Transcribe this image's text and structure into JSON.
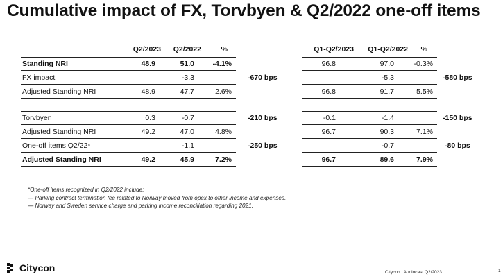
{
  "title": "Cumulative impact of FX, Torvbyen & Q2/2022 one-off items",
  "left_table": {
    "headers": [
      "Q2/2023",
      "Q2/2022",
      "%"
    ],
    "rows": [
      {
        "label": "Standing NRI",
        "a": "48.9",
        "b": "51.0",
        "pct": "-4.1%"
      },
      {
        "label": "FX impact",
        "a": "",
        "b": "-3.3",
        "pct": ""
      },
      {
        "label": "Adjusted Standing NRI",
        "a": "48.9",
        "b": "47.7",
        "pct": "2.6%"
      },
      {
        "label": "Torvbyen",
        "a": "0.3",
        "b": "-0.7",
        "pct": ""
      },
      {
        "label": "Adjusted Standing NRI",
        "a": "49.2",
        "b": "47.0",
        "pct": "4.8%"
      },
      {
        "label": "One-off items Q2/22*",
        "a": "",
        "b": "-1.1",
        "pct": ""
      },
      {
        "label": "Adjusted Standing NRI",
        "a": "49.2",
        "b": "45.9",
        "pct": "7.2%"
      }
    ],
    "bps": {
      "fx": "-670 bps",
      "torvbyen": "-210 bps",
      "oneoff": "-250 bps"
    }
  },
  "right_table": {
    "headers": [
      "Q1-Q2/2023",
      "Q1-Q2/2022",
      "%"
    ],
    "rows": [
      {
        "a": "96.8",
        "b": "97.0",
        "pct": "-0.3%"
      },
      {
        "a": "",
        "b": "-5.3",
        "pct": ""
      },
      {
        "a": "96.8",
        "b": "91.7",
        "pct": "5.5%"
      },
      {
        "a": "-0.1",
        "b": "-1.4",
        "pct": ""
      },
      {
        "a": "96.7",
        "b": "90.3",
        "pct": "7.1%"
      },
      {
        "a": "",
        "b": "-0.7",
        "pct": ""
      },
      {
        "a": "96.7",
        "b": "89.6",
        "pct": "7.9%"
      }
    ],
    "bps": {
      "fx": "-580 bps",
      "torvbyen": "-150 bps",
      "oneoff": "-80 bps"
    }
  },
  "footnote": {
    "heading": "*One-off items recognized in Q2/2022 include:",
    "items": [
      "— Parking contract termination fee related to Norway moved from opex to other income and expenses.",
      "— Norway and Sweden service charge and parking income reconciliation regarding 2021."
    ]
  },
  "footer": {
    "logo_text": "Citycon",
    "center_text": "Citycon | Audiocast Q2/2023",
    "page_number": "1"
  }
}
